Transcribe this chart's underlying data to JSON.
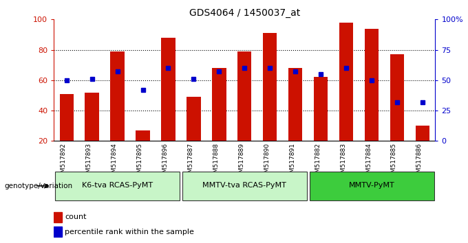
{
  "title": "GDS4064 / 1450037_at",
  "samples": [
    "GSM517892",
    "GSM517893",
    "GSM517894",
    "GSM517895",
    "GSM517896",
    "GSM517887",
    "GSM517888",
    "GSM517889",
    "GSM517890",
    "GSM517891",
    "GSM517882",
    "GSM517883",
    "GSM517884",
    "GSM517885",
    "GSM517886"
  ],
  "counts": [
    51,
    52,
    79,
    27,
    88,
    49,
    68,
    79,
    91,
    68,
    62,
    98,
    94,
    77,
    30
  ],
  "percentiles": [
    50,
    51,
    57,
    42,
    60,
    51,
    57,
    60,
    60,
    57,
    55,
    60,
    50,
    32,
    32
  ],
  "groups": [
    {
      "label": "K6-tva RCAS-PyMT",
      "start": 0,
      "end": 5
    },
    {
      "label": "MMTV-tva RCAS-PyMT",
      "start": 5,
      "end": 10
    },
    {
      "label": "MMTV-PyMT",
      "start": 10,
      "end": 15
    }
  ],
  "bar_color": "#CC1100",
  "dot_color": "#0000CC",
  "ylim_left": [
    20,
    100
  ],
  "ylim_right": [
    0,
    100
  ],
  "yticks_left": [
    20,
    40,
    60,
    80,
    100
  ],
  "yticks_right": [
    0,
    25,
    50,
    75,
    100
  ],
  "ytick_labels_right": [
    "0",
    "25",
    "50",
    "75",
    "100%"
  ],
  "group_face_colors": [
    "#c8f5c8",
    "#c8f5c8",
    "#3dcc3d"
  ],
  "bg_color": "#FFFFFF",
  "legend_count_label": "count",
  "legend_pct_label": "percentile rank within the sample"
}
